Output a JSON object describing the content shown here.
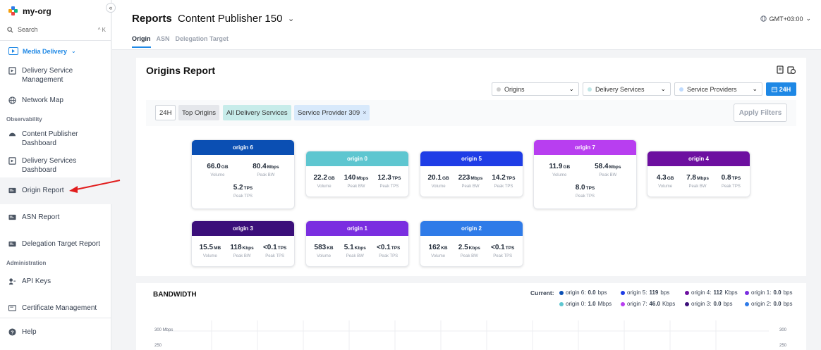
{
  "sidebar": {
    "org_name": "my-org",
    "collapse_glyph": "«",
    "search": {
      "label": "Search",
      "shortcut": "^ K"
    },
    "product": "Media Delivery",
    "items": [
      {
        "label": "Delivery Service Management",
        "icon": "delivery-service-icon"
      },
      {
        "label": "Network Map",
        "icon": "globe-icon"
      },
      {
        "label": "Content Publisher Dashboard",
        "icon": "gauge-icon"
      },
      {
        "label": "Delivery Services Dashboard",
        "icon": "delivery-dashboard-icon"
      },
      {
        "label": "Origin Report",
        "icon": "report-icon",
        "active": true
      },
      {
        "label": "ASN Report",
        "icon": "report-icon"
      },
      {
        "label": "Delegation Target Report",
        "icon": "report-icon"
      },
      {
        "label": "API Keys",
        "icon": "key-icon"
      },
      {
        "label": "Certificate Management",
        "icon": "certificate-icon"
      },
      {
        "label": "Help",
        "icon": "help-icon"
      }
    ],
    "sections": {
      "observability": "Observability",
      "administration": "Administration"
    }
  },
  "header": {
    "title": "Reports",
    "publisher": "Content Publisher 150",
    "timezone": "GMT+03:00",
    "tabs": [
      {
        "label": "Origin",
        "active": true
      },
      {
        "label": "ASN",
        "active": false
      },
      {
        "label": "Delegation Target",
        "active": false
      }
    ]
  },
  "report": {
    "title": "Origins Report",
    "filters": {
      "origins": "Origins",
      "delivery_services": "Delivery Services",
      "service_providers": "Service Providers",
      "time_button": "24H"
    },
    "chips": [
      "24H",
      "Top Origins",
      "All Delivery Services",
      "Service Provider 309"
    ],
    "chip_remove": "×",
    "apply_label": "Apply Filters"
  },
  "origins": [
    {
      "name": "origin 6",
      "color": "#0b4fb3",
      "vol": "66.0",
      "vol_u": "GB",
      "bw": "80.4",
      "bw_u": "Mbps",
      "tps": "5.2",
      "tps_u": "TPS"
    },
    {
      "name": "origin 0",
      "color": "#5ec6d0",
      "vol": "22.2",
      "vol_u": "GB",
      "bw": "140",
      "bw_u": "Mbps",
      "tps": "12.3",
      "tps_u": "TPS"
    },
    {
      "name": "origin 5",
      "color": "#1f3de6",
      "vol": "20.1",
      "vol_u": "GB",
      "bw": "223",
      "bw_u": "Mbps",
      "tps": "14.2",
      "tps_u": "TPS"
    },
    {
      "name": "origin 7",
      "color": "#b83ef0",
      "vol": "11.9",
      "vol_u": "GB",
      "bw": "58.4",
      "bw_u": "Mbps",
      "tps": "8.0",
      "tps_u": "TPS"
    },
    {
      "name": "origin 4",
      "color": "#6d0fa0",
      "vol": "4.3",
      "vol_u": "GB",
      "bw": "7.8",
      "bw_u": "Mbps",
      "tps": "0.8",
      "tps_u": "TPS"
    },
    {
      "name": "origin 3",
      "color": "#3b0f7a",
      "vol": "15.5",
      "vol_u": "MB",
      "bw": "118",
      "bw_u": "Kbps",
      "tps": "<0.1",
      "tps_u": "TPS"
    },
    {
      "name": "origin 1",
      "color": "#7a2ee0",
      "vol": "583",
      "vol_u": "KB",
      "bw": "5.1",
      "bw_u": "Kbps",
      "tps": "<0.1",
      "tps_u": "TPS"
    },
    {
      "name": "origin 2",
      "color": "#2f7be8",
      "vol": "162",
      "vol_u": "KB",
      "bw": "2.5",
      "bw_u": "Kbps",
      "tps": "<0.1",
      "tps_u": "TPS"
    }
  ],
  "metric_labels": {
    "volume": "Volume",
    "peak_bw": "Peak BW",
    "peak_tps": "Peak TPS"
  },
  "bandwidth": {
    "title": "BANDWIDTH",
    "current_label": "Current:",
    "legend": [
      {
        "name": "origin 6:",
        "value": "0.0",
        "unit": "bps",
        "color": "#0b4fb3"
      },
      {
        "name": "origin 5:",
        "value": "119",
        "unit": "bps",
        "color": "#1f3de6"
      },
      {
        "name": "origin 4:",
        "value": "112",
        "unit": "Kbps",
        "color": "#6d0fa0"
      },
      {
        "name": "origin 1:",
        "value": "0.0",
        "unit": "bps",
        "color": "#7a2ee0"
      },
      {
        "name": "origin 0:",
        "value": "1.0",
        "unit": "Mbps",
        "color": "#5ec6d0"
      },
      {
        "name": "origin 7:",
        "value": "46.0",
        "unit": "Kbps",
        "color": "#b83ef0"
      },
      {
        "name": "origin 3:",
        "value": "0.0",
        "unit": "bps",
        "color": "#3b0f7a"
      },
      {
        "name": "origin 2:",
        "value": "0.0",
        "unit": "bps",
        "color": "#2f7be8"
      }
    ],
    "y_left": [
      "300 Mbps",
      "250"
    ],
    "y_right": [
      "300",
      "250"
    ]
  }
}
